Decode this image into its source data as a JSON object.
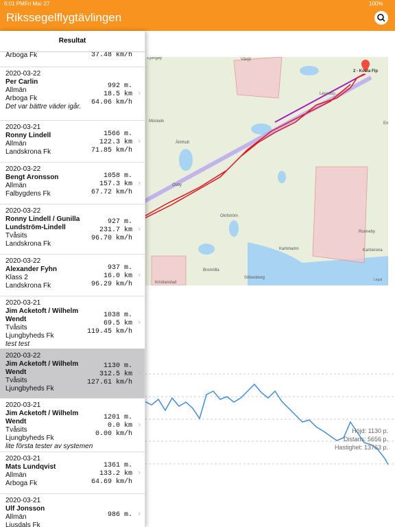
{
  "status_bar": {
    "time": "6:01 PM",
    "date": "Fri Mar 27",
    "battery": "100%"
  },
  "nav_bar": {
    "title": "Rikssegelflygtävlingen"
  },
  "sidebar": {
    "header": "Resultat",
    "rows": [
      {
        "club": "Arboga Fk",
        "stats": [
          "37.48 km/h"
        ]
      },
      {
        "date": "2020-03-22",
        "pilot": "Per Carlin",
        "class": "Allmän",
        "club": "Arboga Fk",
        "comment": "Det var bättre väder igår.",
        "stats": [
          "992 m.",
          "18.5 km",
          "64.06 km/h"
        ]
      },
      {
        "date": "2020-03-21",
        "pilot": "Ronny Lindell",
        "class": "Allmän",
        "club": "Landskrona Fk",
        "stats": [
          "1566 m.",
          "122.3 km",
          "71.85 km/h"
        ]
      },
      {
        "date": "2020-03-22",
        "pilot": "Bengt Aronsson",
        "class": "Allmän",
        "club": "Falbygdens Fk",
        "stats": [
          "1058 m.",
          "157.3 km",
          "67.72 km/h"
        ]
      },
      {
        "date": "2020-03-22",
        "pilot": "Ronny Lindell / Gunilla Lundström-Lindell",
        "class": "Tvåsits",
        "club": "Landskrona Fk",
        "stats": [
          "927 m.",
          "231.7 km",
          "96.70 km/h"
        ]
      },
      {
        "date": "2020-03-22",
        "pilot": "Alexander Fyhn",
        "class": "Klass 2",
        "club": "Landskrona Fk",
        "stats": [
          "937 m.",
          "16.0 km",
          "96.29 km/h"
        ]
      },
      {
        "date": "2020-03-21",
        "pilot": "Jim Acketoft / Wilhelm Wendt",
        "class": "Tvåsits",
        "club": "Ljungbyheds Fk",
        "comment": "test test",
        "stats": [
          "1038 m.",
          "69.5 km",
          "119.45 km/h"
        ]
      },
      {
        "date": "2020-03-22",
        "pilot": "Jim Acketoft / Wilhelm Wendt",
        "class": "Tvåsits",
        "club": "Ljungbyheds Fk",
        "stats": [
          "1130 m.",
          "312.5 km",
          "127.61 km/h"
        ]
      },
      {
        "date": "2020-03-21",
        "pilot": "Jim Acketoft / Wilhelm Wendt",
        "class": "Tvåsits",
        "club": "Ljungbyheds Fk",
        "comment": "lite första tester av systemen",
        "stats": [
          "1201 m.",
          "0.0 km",
          "0.00 km/h"
        ]
      },
      {
        "date": "2020-03-21",
        "pilot": "Mats Lundqvist",
        "class": "Allmän",
        "club": "Arboga Fk",
        "stats": [
          "1361 m.",
          "133.2 km",
          "64.69 km/h"
        ]
      },
      {
        "date": "2020-03-21",
        "pilot": "Ulf Jonsson",
        "class": "Allmän",
        "club": "Ljusdals Fk",
        "stats": [
          "986 m."
        ]
      }
    ]
  },
  "map": {
    "marker": "2 - Kosta Flp",
    "legal": "Legal",
    "places": [
      "Växjö",
      "Ljungby",
      "Lessebo",
      "Möckeln",
      "Älmhult",
      "Osby",
      "Olofström",
      "Ronneby",
      "Karlshamn",
      "Karlskrona",
      "Bromölla",
      "Sölvesborg",
      "Kristianstad",
      "Emm"
    ]
  },
  "chart": {
    "labels": [
      "Höjd: 1130 p.",
      "Distans: 5656 p.",
      "Hastighet: 13763 p."
    ]
  }
}
